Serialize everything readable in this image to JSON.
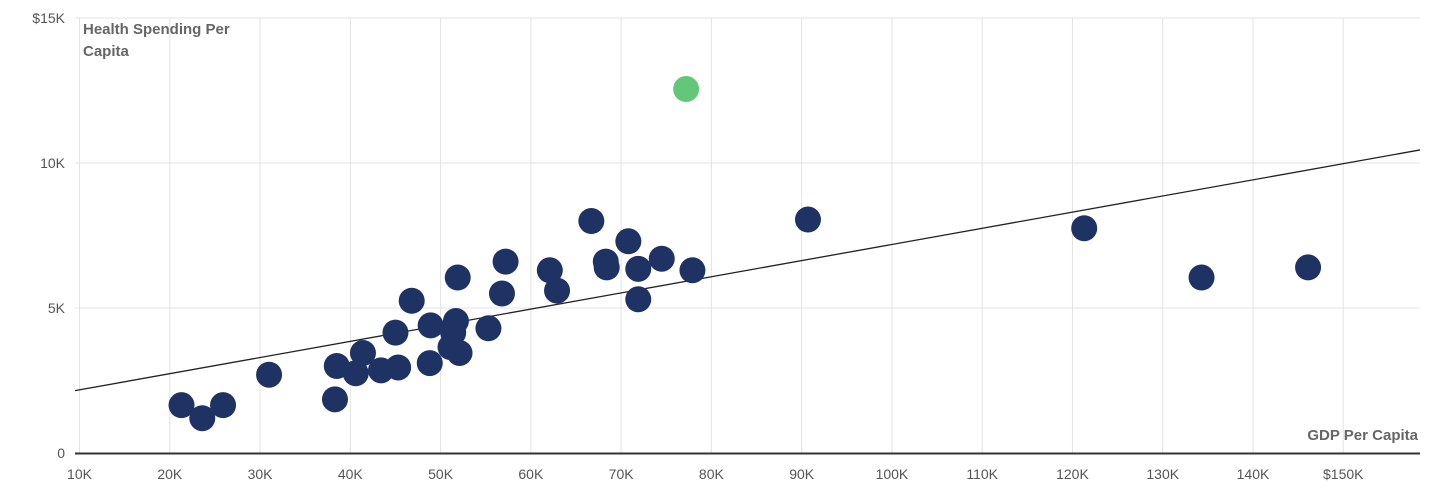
{
  "chart_data": {
    "type": "scatter",
    "xlabel": "GDP Per Capita",
    "ylabel_lines": [
      "Health Spending Per",
      "Capita"
    ],
    "xlim": [
      9500,
      158500
    ],
    "ylim": [
      0,
      15000
    ],
    "x_ticks": [
      10000,
      20000,
      30000,
      40000,
      50000,
      60000,
      70000,
      80000,
      90000,
      100000,
      110000,
      120000,
      130000,
      140000,
      150000
    ],
    "x_tick_labels": [
      "10K",
      "20K",
      "30K",
      "40K",
      "50K",
      "60K",
      "70K",
      "80K",
      "90K",
      "100K",
      "110K",
      "120K",
      "130K",
      "140K",
      "$150K"
    ],
    "y_ticks": [
      0,
      5000,
      10000,
      15000
    ],
    "y_tick_labels": [
      "0",
      "5K",
      "10K",
      "$15K"
    ],
    "grid": true,
    "trend_line": {
      "x": [
        9500,
        158500
      ],
      "y": [
        2150,
        10450
      ]
    },
    "colors": {
      "points": "#1f3264",
      "highlight": "#63c779",
      "trend": "#222222",
      "grid": "#e3e3e3"
    },
    "highlight": {
      "x": 77200,
      "y": 12550
    },
    "points": [
      {
        "x": 21300,
        "y": 1650
      },
      {
        "x": 23600,
        "y": 1200
      },
      {
        "x": 25900,
        "y": 1650
      },
      {
        "x": 31000,
        "y": 2700
      },
      {
        "x": 38300,
        "y": 1850
      },
      {
        "x": 38500,
        "y": 3000
      },
      {
        "x": 40600,
        "y": 2750
      },
      {
        "x": 41400,
        "y": 3450
      },
      {
        "x": 43400,
        "y": 2850
      },
      {
        "x": 45000,
        "y": 4150
      },
      {
        "x": 45300,
        "y": 2950
      },
      {
        "x": 46800,
        "y": 5250
      },
      {
        "x": 48800,
        "y": 3100
      },
      {
        "x": 48900,
        "y": 4400
      },
      {
        "x": 51100,
        "y": 3650
      },
      {
        "x": 51400,
        "y": 4150
      },
      {
        "x": 51700,
        "y": 4550
      },
      {
        "x": 51900,
        "y": 6050
      },
      {
        "x": 52100,
        "y": 3450
      },
      {
        "x": 55300,
        "y": 4300
      },
      {
        "x": 56800,
        "y": 5500
      },
      {
        "x": 57200,
        "y": 6600
      },
      {
        "x": 62100,
        "y": 6300
      },
      {
        "x": 62900,
        "y": 5600
      },
      {
        "x": 66700,
        "y": 8000
      },
      {
        "x": 68300,
        "y": 6600
      },
      {
        "x": 68400,
        "y": 6400
      },
      {
        "x": 70800,
        "y": 7300
      },
      {
        "x": 71900,
        "y": 6350
      },
      {
        "x": 71900,
        "y": 5300
      },
      {
        "x": 74500,
        "y": 6700
      },
      {
        "x": 77900,
        "y": 6300
      },
      {
        "x": 90700,
        "y": 8050
      },
      {
        "x": 121300,
        "y": 7750
      },
      {
        "x": 134300,
        "y": 6050
      },
      {
        "x": 146100,
        "y": 6400
      }
    ]
  }
}
